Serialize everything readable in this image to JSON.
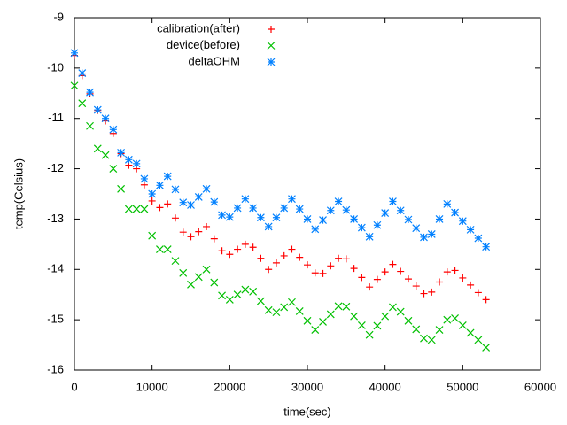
{
  "chart_data": {
    "type": "scatter",
    "xlabel": "time(sec)",
    "ylabel": "temp(Celsius)",
    "xlim": [
      0,
      60000
    ],
    "xticks": [
      0,
      10000,
      20000,
      30000,
      40000,
      50000,
      60000
    ],
    "ylim": [
      -16,
      -9
    ],
    "yticks": [
      -16,
      -15,
      -14,
      -13,
      -12,
      -11,
      -10,
      -9
    ],
    "legend": "top",
    "x": [
      0,
      1000,
      2000,
      3000,
      4000,
      5000,
      6000,
      7000,
      8000,
      9000,
      10000,
      11000,
      12000,
      13000,
      14000,
      15000,
      16000,
      17000,
      18000,
      19000,
      20000,
      21000,
      22000,
      23000,
      24000,
      25000,
      26000,
      27000,
      28000,
      29000,
      30000,
      31000,
      32000,
      33000,
      34000,
      35000,
      36000,
      37000,
      38000,
      39000,
      40000,
      41000,
      42000,
      43000,
      44000,
      45000,
      46000,
      47000,
      48000,
      49000,
      50000,
      51000,
      52000,
      53000
    ],
    "series": [
      {
        "name": "calibration(after)",
        "color": "#ff0000",
        "marker": "plus",
        "values": [
          -9.75,
          -10.15,
          -10.51,
          -10.84,
          -11.05,
          -11.3,
          -11.7,
          -11.93,
          -12.0,
          -12.32,
          -12.64,
          -12.77,
          -12.7,
          -12.98,
          -13.26,
          -13.35,
          -13.25,
          -13.15,
          -13.39,
          -13.63,
          -13.7,
          -13.6,
          -13.5,
          -13.56,
          -13.78,
          -14.0,
          -13.87,
          -13.73,
          -13.6,
          -13.76,
          -13.91,
          -14.07,
          -14.08,
          -13.93,
          -13.78,
          -13.79,
          -13.98,
          -14.16,
          -14.35,
          -14.2,
          -14.05,
          -13.9,
          -14.04,
          -14.19,
          -14.33,
          -14.48,
          -14.45,
          -14.25,
          -14.05,
          -14.02,
          -14.17,
          -14.31,
          -14.46,
          -14.6
        ]
      },
      {
        "name": "device(before)",
        "color": "#00c000",
        "marker": "cross",
        "values": [
          -10.35,
          -10.7,
          -11.15,
          -11.6,
          -11.73,
          -12.0,
          -12.4,
          -12.8,
          -12.8,
          -12.8,
          -13.33,
          -13.6,
          -13.6,
          -13.83,
          -14.07,
          -14.3,
          -14.15,
          -14.0,
          -14.26,
          -14.52,
          -14.6,
          -14.5,
          -14.4,
          -14.44,
          -14.63,
          -14.81,
          -14.85,
          -14.75,
          -14.65,
          -14.83,
          -15.02,
          -15.2,
          -15.04,
          -14.89,
          -14.73,
          -14.74,
          -14.93,
          -15.11,
          -15.3,
          -15.12,
          -14.93,
          -14.75,
          -14.84,
          -15.02,
          -15.19,
          -15.37,
          -15.4,
          -15.2,
          -15.0,
          -14.97,
          -15.11,
          -15.26,
          -15.4,
          -15.55
        ]
      },
      {
        "name": "deltaOHM",
        "color": "#0080ff",
        "marker": "star",
        "values": [
          -9.7,
          -10.1,
          -10.48,
          -10.83,
          -11.0,
          -11.22,
          -11.68,
          -11.82,
          -11.9,
          -12.2,
          -12.5,
          -12.33,
          -12.15,
          -12.41,
          -12.67,
          -12.72,
          -12.56,
          -12.4,
          -12.66,
          -12.92,
          -12.96,
          -12.78,
          -12.6,
          -12.78,
          -12.97,
          -13.15,
          -12.97,
          -12.78,
          -12.6,
          -12.8,
          -13.0,
          -13.2,
          -13.02,
          -12.83,
          -12.65,
          -12.82,
          -13.0,
          -13.17,
          -13.35,
          -13.12,
          -12.88,
          -12.65,
          -12.83,
          -13.01,
          -13.18,
          -13.36,
          -13.3,
          -13.0,
          -12.7,
          -12.87,
          -13.04,
          -13.21,
          -13.38,
          -13.55
        ]
      }
    ]
  }
}
